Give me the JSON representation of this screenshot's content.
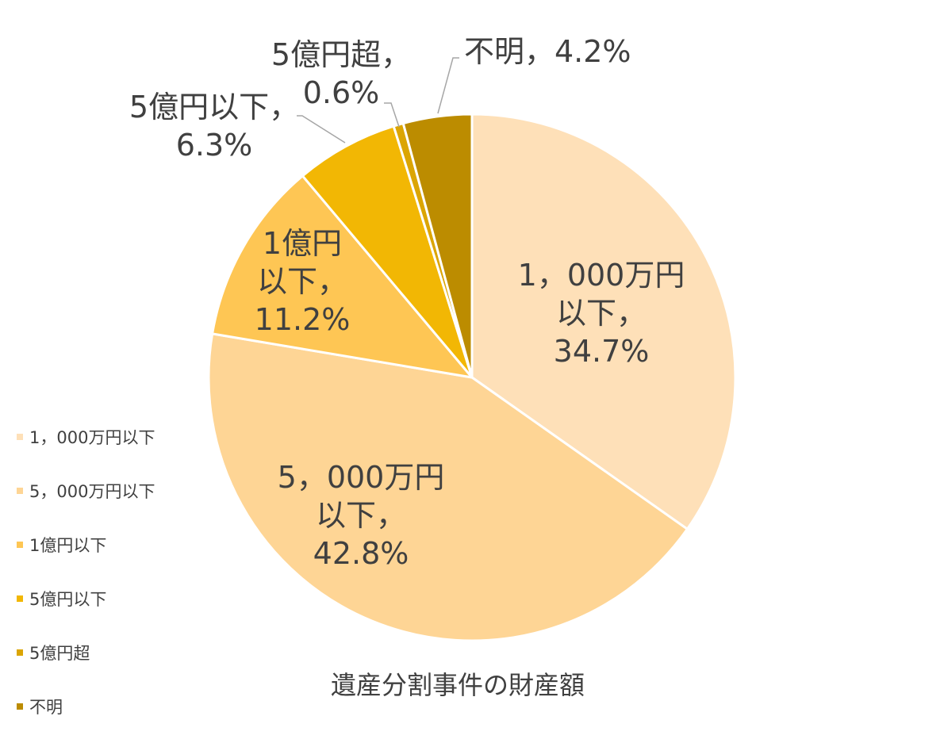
{
  "chart_data": {
    "type": "pie",
    "title": "",
    "caption": "遺産分割事件の財産額",
    "legend_position": "left",
    "start_angle_deg": 0,
    "direction": "clockwise",
    "slices": [
      {
        "legend": "1，000万円以下",
        "label_lines": [
          "1，000万円",
          "以下，",
          "34.7%"
        ],
        "value": 34.7,
        "color": "#FEE0B8"
      },
      {
        "legend": "5，000万円以下",
        "label_lines": [
          "5，000万円",
          "以下，",
          "42.8%"
        ],
        "value": 42.8,
        "color": "#FED595"
      },
      {
        "legend": "1億円以下",
        "label_lines": [
          "1億円",
          "以下，",
          "11.2%"
        ],
        "value": 11.2,
        "color": "#FEC654"
      },
      {
        "legend": "5億円以下",
        "label_lines": [
          "5億円以下，",
          "6.3%"
        ],
        "value": 6.3,
        "color": "#F2B704"
      },
      {
        "legend": "5億円超",
        "label_lines": [
          "5億円超，",
          "0.6%"
        ],
        "value": 0.6,
        "color": "#DBA503"
      },
      {
        "legend": "不明",
        "label_lines": [
          "不明，4.2%"
        ],
        "value": 4.2,
        "color": "#BC8C00"
      }
    ]
  }
}
